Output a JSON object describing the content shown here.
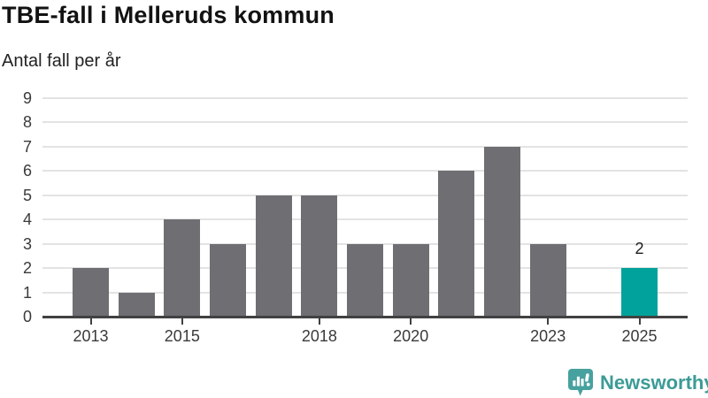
{
  "header": {
    "title": "TBE-fall i Melleruds kommun",
    "subtitle": "Antal fall per år"
  },
  "chart_data": {
    "type": "bar",
    "title": "TBE-fall i Melleruds kommun",
    "subtitle": "Antal fall per år",
    "categories": [
      "2013",
      "2014",
      "2015",
      "2016",
      "2017",
      "2018",
      "2019",
      "2020",
      "2021",
      "2022",
      "2023",
      "2024",
      "2025"
    ],
    "values": [
      2,
      1,
      4,
      3,
      5,
      5,
      3,
      3,
      6,
      7,
      3,
      null,
      2
    ],
    "ylim": [
      0,
      9
    ],
    "yticks": [
      0,
      1,
      2,
      3,
      4,
      5,
      6,
      7,
      8,
      9
    ],
    "xtick_labels": [
      "2013",
      "2015",
      "2018",
      "2020",
      "2023",
      "2025"
    ],
    "grid": "horizontal",
    "legend": "none",
    "bar_color": "#6e6e73",
    "highlight_color": "#00a29b",
    "highlight_category": "2025",
    "data_labels": [
      {
        "category": "2025",
        "text": "2"
      }
    ]
  },
  "footer": {
    "brand": "Newsworthy",
    "brand_color": "#3c9b96",
    "logo_icon": "newsworthy-chart-bubble-icon"
  }
}
